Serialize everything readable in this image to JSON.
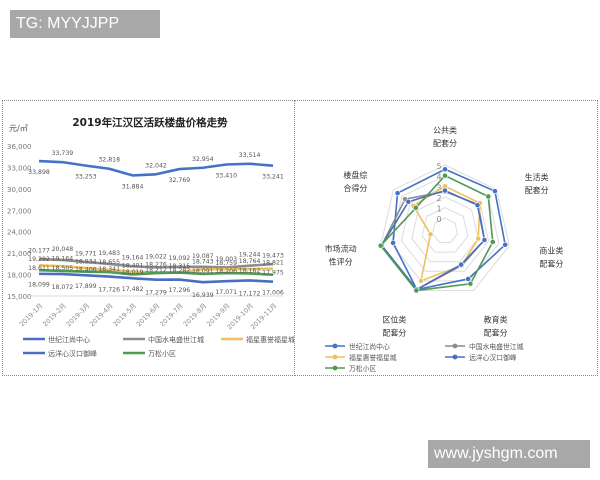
{
  "watermarks": {
    "top": "TG: MYYJJPP",
    "bottom": "www.jyshgm.com"
  },
  "colors": {
    "series_blue": "#4472c4",
    "series_gray": "#8c8c8c",
    "series_gold": "#f0c060",
    "series_navy": "#4a6fc0",
    "series_green": "#4f9a55",
    "grid": "#d9d9d9",
    "watermark_bg": "#a8a8a8"
  },
  "chart_data": [
    {
      "type": "line",
      "title": "2019年江汉区活跃楼盘价格走势",
      "ylabel": "元/㎡",
      "xlabel": "",
      "ylim": [
        15000,
        36000
      ],
      "yticks": [
        "36,000",
        "33,000",
        "30,000",
        "27,000",
        "24,000",
        "21,000",
        "18,000",
        "15,000"
      ],
      "categories": [
        "2019-1月",
        "2019-2月",
        "2019-3月",
        "2019-4月",
        "2019-5月",
        "2019-6月",
        "2019-7月",
        "2019-8月",
        "2019-9月",
        "2019-10月",
        "2019-11月"
      ],
      "series": [
        {
          "name": "世纪江尚中心",
          "color": "#4472c4",
          "values": [
            33898,
            33739,
            33253,
            32818,
            31884,
            32042,
            32769,
            32954,
            33410,
            33514,
            33241
          ]
        },
        {
          "name": "中国水电盛世江城",
          "color": "#8c8c8c",
          "values": [
            20177,
            20048,
            19771,
            19483,
            19164,
            19022,
            19092,
            19087,
            19003,
            19244,
            19473
          ]
        },
        {
          "name": "福星惠誉福星城",
          "color": "#f0c060",
          "values": [
            19292,
            19164,
            18934,
            18655,
            18401,
            18276,
            18315,
            18743,
            18759,
            18764,
            18821
          ]
        },
        {
          "name": "远洋心汉口御峰",
          "color": "#4a6fc0",
          "values": [
            18099,
            18072,
            17899,
            17726,
            17482,
            17279,
            17296,
            16939,
            17071,
            17172,
            17006
          ]
        },
        {
          "name": "万松小区",
          "color": "#4f9a55",
          "values": [
            18611,
            18505,
            18406,
            18341,
            18019,
            18212,
            18282,
            18091,
            18206,
            18162,
            17975
          ]
        }
      ],
      "legend": [
        "世纪江尚中心",
        "中国水电盛世江城",
        "福星惠誉福星城",
        "远洋心汉口御峰",
        "万松小区"
      ],
      "legend_position": "bottom",
      "grid": false
    },
    {
      "type": "radar",
      "title": "",
      "axes": [
        "公共类配套分",
        "生活类配套分",
        "商业类配套分",
        "教育类配套分",
        "区位类配套分",
        "市场流动性评分",
        "楼盘综合得分"
      ],
      "axis_labels": [
        [
          "公共类",
          "配套分"
        ],
        [
          "生活类",
          "配套分"
        ],
        [
          "商业类",
          "配套分"
        ],
        [
          "教育类",
          "配套分"
        ],
        [
          "区位类",
          "配套分"
        ],
        [
          "市场流动",
          "性评分"
        ],
        [
          "楼盘综",
          "合得分"
        ]
      ],
      "rlim": [
        0,
        5
      ],
      "rticks": [
        "0",
        "1",
        "2",
        "3",
        "4",
        "5"
      ],
      "series": [
        {
          "name": "世纪江尚中心",
          "color": "#4472c4",
          "values": [
            4.6,
            4.8,
            4.6,
            3.8,
            4.9,
            3.8,
            4.5
          ]
        },
        {
          "name": "中国水电盛世江城",
          "color": "#8c8c8c",
          "values": [
            2.5,
            2.8,
            2.6,
            2.4,
            4.9,
            4.9,
            3.6
          ]
        },
        {
          "name": "福星惠誉福星城",
          "color": "#f0c060",
          "values": [
            3.0,
            3.0,
            2.0,
            2.4,
            4.0,
            0.2,
            2.6
          ]
        },
        {
          "name": "远洋心汉口御峰",
          "color": "#4a6fc0",
          "values": [
            2.6,
            2.7,
            2.6,
            2.3,
            4.9,
            4.9,
            3.2
          ]
        },
        {
          "name": "万松小区",
          "color": "#4f9a55",
          "values": [
            4.0,
            4.0,
            3.4,
            4.3,
            5.0,
            5.0,
            2.3
          ]
        }
      ],
      "legend": [
        "世纪江尚中心",
        "中国水电盛世江城",
        "福星惠誉福星城",
        "远洋心汉口御峰",
        "万松小区"
      ],
      "legend_position": "bottom"
    }
  ]
}
